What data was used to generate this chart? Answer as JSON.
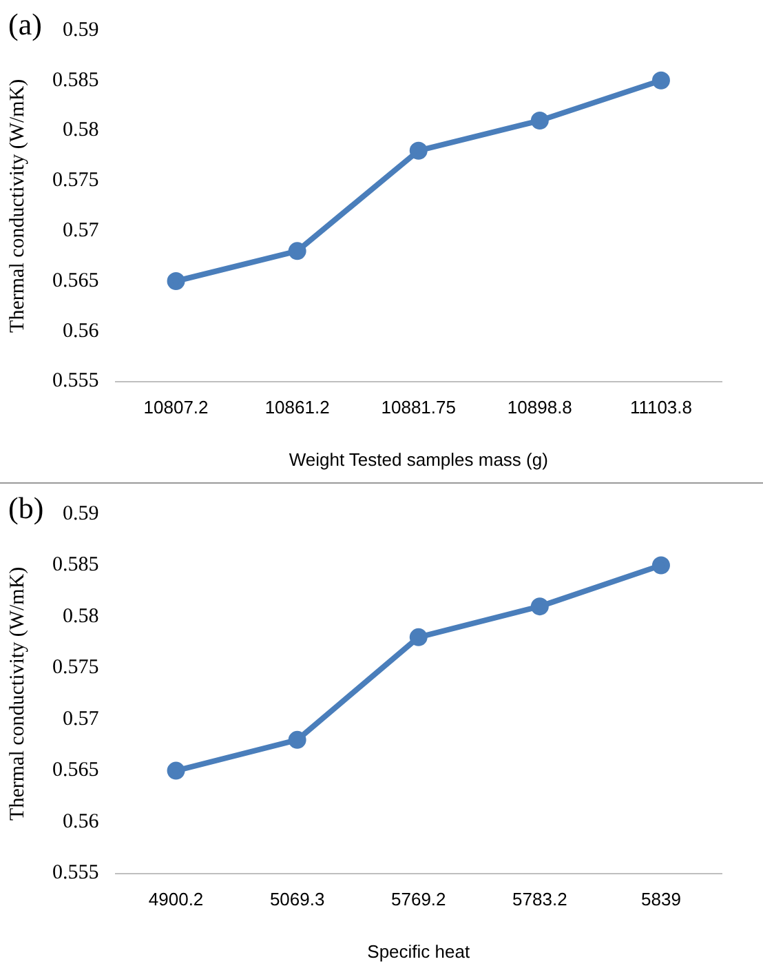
{
  "chart_data": [
    {
      "type": "line",
      "annotations": [
        "(a)"
      ],
      "xlabel": "Weight Tested samples mass (g)",
      "ylabel": "Thermal conductivity (W/mK)",
      "categories": [
        "10807.2",
        "10861.2",
        "10881.75",
        "10898.8",
        "11103.8"
      ],
      "values": [
        0.565,
        0.568,
        0.578,
        0.581,
        0.585
      ],
      "color": "#4a7ebb",
      "ylim": [
        0.555,
        0.59
      ],
      "yticks": [
        0.555,
        0.56,
        0.565,
        0.57,
        0.575,
        0.58,
        0.585,
        0.59
      ],
      "grid": false,
      "marker": "circle"
    },
    {
      "type": "line",
      "annotations": [
        "(b)"
      ],
      "xlabel": "Specific heat",
      "ylabel": "Thermal conductivity (W/mK)",
      "categories": [
        "4900.2",
        "5069.3",
        "5769.2",
        "5783.2",
        "5839"
      ],
      "values": [
        0.565,
        0.568,
        0.578,
        0.581,
        0.585
      ],
      "color": "#4a7ebb",
      "ylim": [
        0.555,
        0.59
      ],
      "yticks": [
        0.555,
        0.56,
        0.565,
        0.57,
        0.575,
        0.58,
        0.585,
        0.59
      ],
      "grid": false,
      "marker": "circle"
    }
  ]
}
